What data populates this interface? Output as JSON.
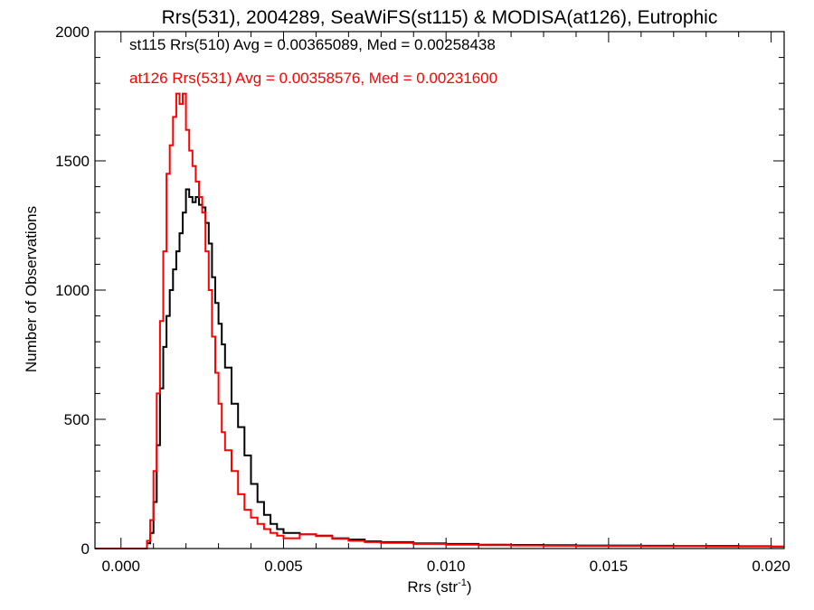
{
  "chart_data": {
    "type": "line",
    "step": true,
    "title": "Rrs(531), 2004289, SeaWiFS(st115) & MODISA(at126), Eutrophic",
    "xlabel": "Rrs (str",
    "xlabel_sup": "-1",
    "xlabel_close": ")",
    "ylabel": "Number of Observations",
    "xlim": [
      -0.0008,
      0.0204
    ],
    "ylim": [
      0,
      2000
    ],
    "xticks": [
      0.0,
      0.005,
      0.01,
      0.015,
      0.02
    ],
    "xtick_labels": [
      "0.000",
      "0.005",
      "0.010",
      "0.015",
      "0.020"
    ],
    "yticks": [
      0,
      500,
      1000,
      1500,
      2000
    ],
    "ytick_labels": [
      "0",
      "500",
      "1000",
      "1500",
      "2000"
    ],
    "grid": false,
    "annotations": [
      {
        "text": "st115 Rrs(510) Avg = 0.00365089, Med = 0.00258438",
        "color": "#000000"
      },
      {
        "text": "at126 Rrs(531) Avg = 0.00358576, Med = 0.00231600",
        "color": "#ff0000"
      }
    ],
    "series": [
      {
        "color": "#000000",
        "x": [
          -0.0008,
          0.0006,
          0.0008,
          0.0009,
          0.001,
          0.0011,
          0.0012,
          0.0013,
          0.0014,
          0.0015,
          0.0016,
          0.0017,
          0.0018,
          0.0019,
          0.002,
          0.0021,
          0.0022,
          0.0023,
          0.0024,
          0.0025,
          0.0026,
          0.0027,
          0.0028,
          0.0029,
          0.003,
          0.0031,
          0.0032,
          0.0034,
          0.0036,
          0.0038,
          0.004,
          0.0042,
          0.0044,
          0.0046,
          0.0048,
          0.005,
          0.0055,
          0.006,
          0.0065,
          0.007,
          0.0075,
          0.008,
          0.009,
          0.01,
          0.011,
          0.012,
          0.013,
          0.014,
          0.015,
          0.016,
          0.017,
          0.018,
          0.019,
          0.02,
          0.0204
        ],
        "y": [
          0,
          0,
          20,
          60,
          180,
          400,
          620,
          780,
          900,
          1000,
          1080,
          1150,
          1220,
          1300,
          1390,
          1360,
          1340,
          1360,
          1330,
          1320,
          1260,
          1180,
          1050,
          950,
          870,
          790,
          700,
          560,
          470,
          360,
          250,
          180,
          130,
          95,
          75,
          60,
          55,
          50,
          40,
          35,
          28,
          25,
          20,
          18,
          15,
          14,
          13,
          12,
          12,
          11,
          10,
          10,
          9,
          8,
          8
        ]
      },
      {
        "color": "#ff0000",
        "x": [
          -0.0008,
          0.0006,
          0.0008,
          0.0009,
          0.001,
          0.0011,
          0.0012,
          0.0013,
          0.0014,
          0.0015,
          0.0016,
          0.0017,
          0.0018,
          0.0019,
          0.002,
          0.0021,
          0.0022,
          0.0023,
          0.0024,
          0.0025,
          0.0026,
          0.0027,
          0.0028,
          0.0029,
          0.003,
          0.0031,
          0.0032,
          0.0034,
          0.0036,
          0.0038,
          0.004,
          0.0042,
          0.0044,
          0.0046,
          0.0048,
          0.005,
          0.0055,
          0.006,
          0.0065,
          0.007,
          0.0075,
          0.008,
          0.009,
          0.01,
          0.011,
          0.012,
          0.013,
          0.014,
          0.015,
          0.016,
          0.017,
          0.018,
          0.019,
          0.02,
          0.0204
        ],
        "y": [
          0,
          0,
          30,
          110,
          300,
          600,
          880,
          1150,
          1450,
          1560,
          1670,
          1760,
          1720,
          1760,
          1620,
          1540,
          1480,
          1420,
          1360,
          1300,
          1150,
          1000,
          820,
          680,
          560,
          450,
          380,
          300,
          210,
          150,
          120,
          95,
          75,
          60,
          50,
          40,
          55,
          48,
          38,
          30,
          25,
          22,
          18,
          15,
          13,
          12,
          11,
          10,
          10,
          9,
          9,
          8,
          8,
          7,
          7
        ]
      }
    ]
  }
}
